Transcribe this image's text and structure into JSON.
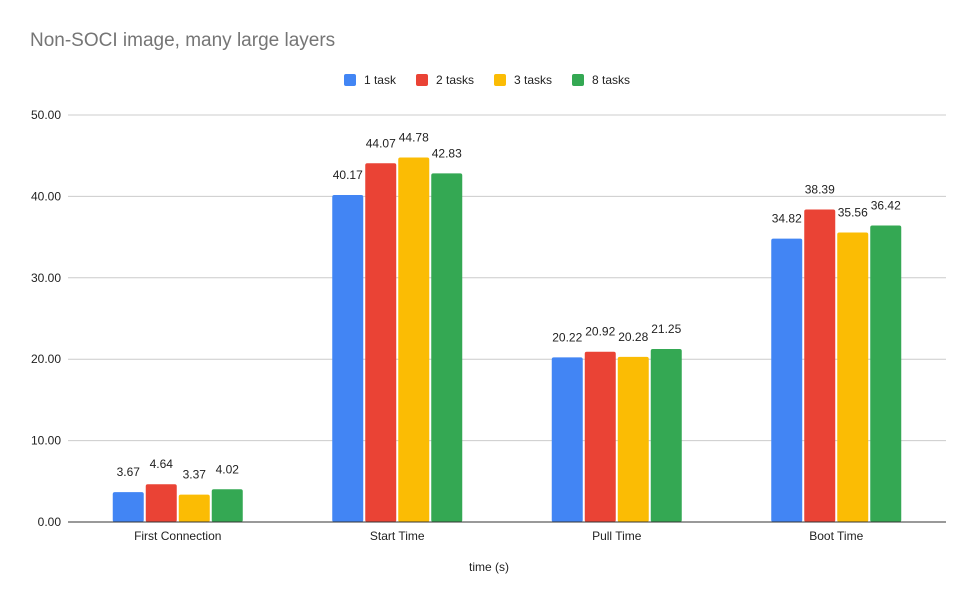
{
  "chart_data": {
    "type": "bar",
    "title": "Non-SOCI image, many large layers",
    "xlabel": "time (s)",
    "ylabel": "",
    "ylim": [
      0,
      50
    ],
    "yticks": [
      "0.00",
      "10.00",
      "20.00",
      "30.00",
      "40.00",
      "50.00"
    ],
    "grid": true,
    "legend_position": "top",
    "categories": [
      "First Connection",
      "Start Time",
      "Pull Time",
      "Boot Time"
    ],
    "series": [
      {
        "name": "1 task",
        "color": "#4285F4",
        "values": [
          3.67,
          40.17,
          20.22,
          34.82
        ]
      },
      {
        "name": "2 tasks",
        "color": "#EA4335",
        "values": [
          4.64,
          44.07,
          20.92,
          38.39
        ]
      },
      {
        "name": "3 tasks",
        "color": "#FBBC04",
        "values": [
          3.37,
          44.78,
          20.28,
          35.56
        ]
      },
      {
        "name": "8 tasks",
        "color": "#34A853",
        "values": [
          4.02,
          42.83,
          21.25,
          36.42
        ]
      }
    ],
    "data_labels": true
  }
}
